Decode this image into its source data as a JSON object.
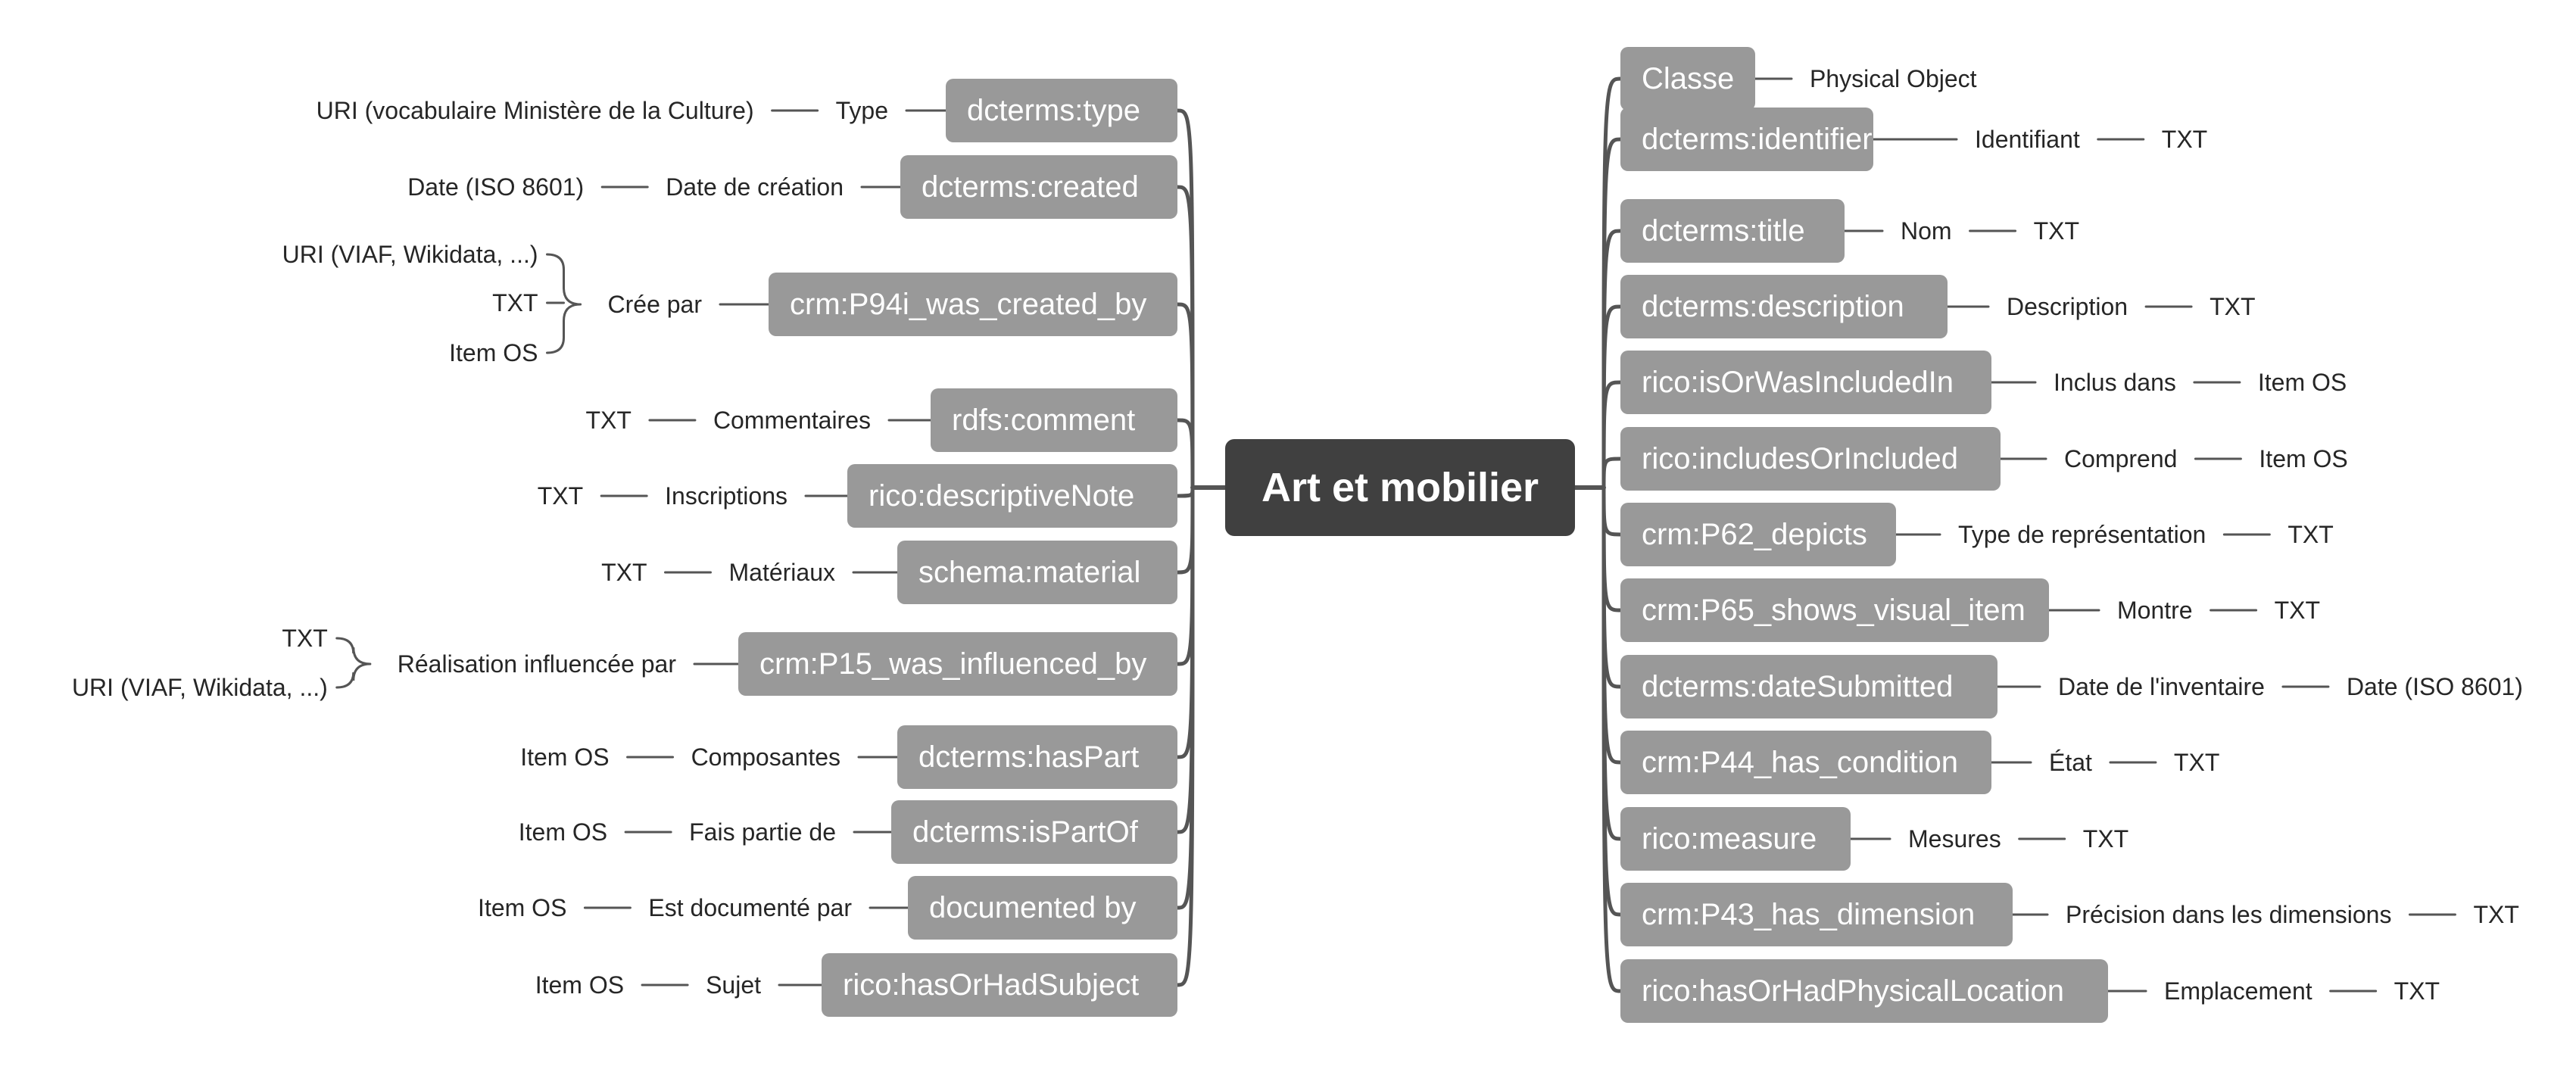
{
  "colors": {
    "root": "#404040",
    "node": "#999999",
    "line": "#555555",
    "text": "#262626"
  },
  "root": {
    "label": "Art et mobilier"
  },
  "right": [
    {
      "node": "Classe",
      "chain": [
        "Physical Object"
      ]
    },
    {
      "node": "dcterms:identifier",
      "chain": [
        "Identifiant",
        "TXT"
      ]
    },
    {
      "node": "dcterms:title",
      "chain": [
        "Nom",
        "TXT"
      ]
    },
    {
      "node": "dcterms:description",
      "chain": [
        "Description",
        "TXT"
      ]
    },
    {
      "node": "rico:isOrWasIncludedIn",
      "chain": [
        "Inclus dans",
        "Item OS"
      ]
    },
    {
      "node": "rico:includesOrIncluded",
      "chain": [
        "Comprend",
        "Item OS"
      ]
    },
    {
      "node": "crm:P62_depicts",
      "chain": [
        "Type de représentation",
        "TXT"
      ]
    },
    {
      "node": "crm:P65_shows_visual_item",
      "chain": [
        "Montre",
        "TXT"
      ]
    },
    {
      "node": "dcterms:dateSubmitted",
      "chain": [
        "Date de l'inventaire",
        "Date (ISO 8601)"
      ]
    },
    {
      "node": "crm:P44_has_condition",
      "chain": [
        "État",
        "TXT"
      ]
    },
    {
      "node": "rico:measure",
      "chain": [
        "Mesures",
        "TXT"
      ]
    },
    {
      "node": "crm:P43_has_dimension",
      "chain": [
        "Précision dans les dimensions",
        "TXT"
      ]
    },
    {
      "node": "rico:hasOrHadPhysicalLocation",
      "chain": [
        "Emplacement",
        "TXT"
      ]
    }
  ],
  "left": [
    {
      "node": "dcterms:type",
      "chain": [
        "Type",
        "URI (vocabulaire Ministère de la Culture)"
      ]
    },
    {
      "node": "dcterms:created",
      "chain": [
        "Date de création",
        "Date (ISO 8601)"
      ]
    },
    {
      "node": "crm:P94i_was_created_by",
      "chain": [
        "Crée par"
      ],
      "group": [
        "URI (VIAF, Wikidata, ...)",
        "TXT",
        "Item OS"
      ]
    },
    {
      "node": "rdfs:comment",
      "chain": [
        "Commentaires",
        "TXT"
      ]
    },
    {
      "node": "rico:descriptiveNote",
      "chain": [
        "Inscriptions",
        "TXT"
      ]
    },
    {
      "node": "schema:material",
      "chain": [
        "Matériaux",
        "TXT"
      ]
    },
    {
      "node": "crm:P15_was_influenced_by",
      "chain": [
        "Réalisation influencée par"
      ],
      "group": [
        "TXT",
        "URI (VIAF, Wikidata, ...)"
      ]
    },
    {
      "node": "dcterms:hasPart",
      "chain": [
        "Composantes",
        "Item OS"
      ]
    },
    {
      "node": "dcterms:isPartOf",
      "chain": [
        "Fais partie de",
        "Item OS"
      ]
    },
    {
      "node": "documented by",
      "chain": [
        "Est documenté par",
        "Item OS"
      ]
    },
    {
      "node": "rico:hasOrHadSubject",
      "chain": [
        "Sujet",
        "Item OS"
      ]
    }
  ]
}
